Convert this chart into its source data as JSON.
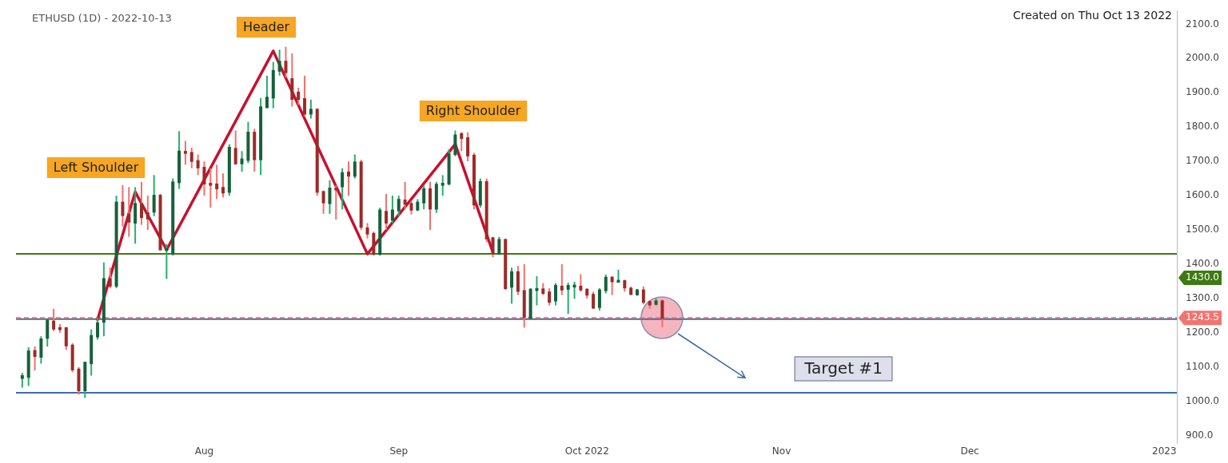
{
  "chart_data": {
    "type": "candlestick",
    "title": "ETHUSD (1D) - 2022-10-13",
    "x": [
      "2022-07-03",
      "2022-07-04",
      "2022-07-05",
      "2022-07-06",
      "2022-07-07",
      "2022-07-08",
      "2022-07-09",
      "2022-07-10",
      "2022-07-11",
      "2022-07-12",
      "2022-07-13",
      "2022-07-14",
      "2022-07-15",
      "2022-07-16",
      "2022-07-17",
      "2022-07-18",
      "2022-07-19",
      "2022-07-20",
      "2022-07-21",
      "2022-07-22",
      "2022-07-23",
      "2022-07-24",
      "2022-07-25",
      "2022-07-26",
      "2022-07-27",
      "2022-07-28",
      "2022-07-29",
      "2022-07-30",
      "2022-07-31",
      "2022-08-01",
      "2022-08-02",
      "2022-08-03",
      "2022-08-04",
      "2022-08-05",
      "2022-08-06",
      "2022-08-07",
      "2022-08-08",
      "2022-08-09",
      "2022-08-10",
      "2022-08-11",
      "2022-08-12",
      "2022-08-13",
      "2022-08-14",
      "2022-08-15",
      "2022-08-16",
      "2022-08-17",
      "2022-08-18",
      "2022-08-19",
      "2022-08-20",
      "2022-08-21",
      "2022-08-22",
      "2022-08-23",
      "2022-08-24",
      "2022-08-25",
      "2022-08-26",
      "2022-08-27",
      "2022-08-28",
      "2022-08-29",
      "2022-08-30",
      "2022-08-31",
      "2022-09-01",
      "2022-09-02",
      "2022-09-03",
      "2022-09-04",
      "2022-09-05",
      "2022-09-06",
      "2022-09-07",
      "2022-09-08",
      "2022-09-09",
      "2022-09-10",
      "2022-09-11",
      "2022-09-12",
      "2022-09-13",
      "2022-09-14",
      "2022-09-15",
      "2022-09-16",
      "2022-09-17",
      "2022-09-18",
      "2022-09-19",
      "2022-09-20",
      "2022-09-21",
      "2022-09-22",
      "2022-09-23",
      "2022-09-24",
      "2022-09-25",
      "2022-09-26",
      "2022-09-27",
      "2022-09-28",
      "2022-09-29",
      "2022-09-30",
      "2022-10-01",
      "2022-10-02",
      "2022-10-03",
      "2022-10-04",
      "2022-10-05",
      "2022-10-06",
      "2022-10-07",
      "2022-10-08",
      "2022-10-09",
      "2022-10-10",
      "2022-10-11",
      "2022-10-12",
      "2022-10-13"
    ],
    "ohlc": [
      [
        1068,
        1083,
        1040,
        1074
      ],
      [
        1071,
        1158,
        1045,
        1146
      ],
      [
        1147,
        1160,
        1090,
        1132
      ],
      [
        1130,
        1190,
        1110,
        1181
      ],
      [
        1185,
        1240,
        1160,
        1236
      ],
      [
        1233,
        1270,
        1205,
        1212
      ],
      [
        1214,
        1225,
        1200,
        1213
      ],
      [
        1214,
        1216,
        1150,
        1163
      ],
      [
        1163,
        1170,
        1085,
        1093
      ],
      [
        1093,
        1100,
        1020,
        1032
      ],
      [
        1032,
        1115,
        1010,
        1113
      ],
      [
        1111,
        1210,
        1075,
        1191
      ],
      [
        1189,
        1245,
        1180,
        1228
      ],
      [
        1232,
        1405,
        1190,
        1357
      ],
      [
        1357,
        1390,
        1330,
        1337
      ],
      [
        1337,
        1600,
        1330,
        1580
      ],
      [
        1580,
        1631,
        1510,
        1543
      ],
      [
        1545,
        1625,
        1480,
        1524
      ],
      [
        1521,
        1625,
        1460,
        1576
      ],
      [
        1576,
        1640,
        1515,
        1537
      ],
      [
        1549,
        1600,
        1500,
        1533
      ],
      [
        1553,
        1660,
        1540,
        1600
      ],
      [
        1600,
        1605,
        1440,
        1443
      ],
      [
        1443,
        1459,
        1357,
        1445
      ],
      [
        1431,
        1650,
        1425,
        1639
      ],
      [
        1639,
        1788,
        1620,
        1729
      ],
      [
        1728,
        1760,
        1690,
        1726
      ],
      [
        1725,
        1740,
        1680,
        1701
      ],
      [
        1701,
        1720,
        1660,
        1682
      ],
      [
        1682,
        1700,
        1600,
        1635
      ],
      [
        1635,
        1680,
        1565,
        1633
      ],
      [
        1633,
        1690,
        1590,
        1621
      ],
      [
        1623,
        1665,
        1595,
        1609
      ],
      [
        1611,
        1750,
        1600,
        1740
      ],
      [
        1737,
        1790,
        1690,
        1694
      ],
      [
        1694,
        1730,
        1670,
        1706
      ],
      [
        1704,
        1815,
        1695,
        1784
      ],
      [
        1784,
        1795,
        1670,
        1706
      ],
      [
        1706,
        1885,
        1660,
        1858
      ],
      [
        1858,
        1950,
        1855,
        1886
      ],
      [
        1886,
        1990,
        1855,
        1964
      ],
      [
        1964,
        2026,
        1950,
        1991
      ],
      [
        1991,
        2034,
        1945,
        1960
      ],
      [
        1940,
        2015,
        1860,
        1882
      ],
      [
        1901,
        1915,
        1865,
        1882
      ],
      [
        1882,
        1950,
        1830,
        1839
      ],
      [
        1839,
        1880,
        1825,
        1851
      ],
      [
        1851,
        1855,
        1600,
        1611
      ],
      [
        1611,
        1615,
        1547,
        1580
      ],
      [
        1578,
        1645,
        1547,
        1621
      ],
      [
        1621,
        1630,
        1530,
        1618
      ],
      [
        1627,
        1680,
        1560,
        1666
      ],
      [
        1668,
        1700,
        1600,
        1658
      ],
      [
        1658,
        1720,
        1650,
        1697
      ],
      [
        1697,
        1705,
        1500,
        1509
      ],
      [
        1505,
        1520,
        1475,
        1489
      ],
      [
        1489,
        1495,
        1425,
        1430
      ],
      [
        1430,
        1565,
        1425,
        1557
      ],
      [
        1553,
        1605,
        1500,
        1521
      ],
      [
        1529,
        1600,
        1520,
        1557
      ],
      [
        1557,
        1600,
        1540,
        1588
      ],
      [
        1586,
        1640,
        1560,
        1576
      ],
      [
        1576,
        1585,
        1545,
        1559
      ],
      [
        1559,
        1590,
        1555,
        1580
      ],
      [
        1580,
        1630,
        1560,
        1619
      ],
      [
        1619,
        1640,
        1500,
        1562
      ],
      [
        1562,
        1640,
        1550,
        1632
      ],
      [
        1632,
        1660,
        1600,
        1635
      ],
      [
        1635,
        1735,
        1630,
        1721
      ],
      [
        1721,
        1790,
        1715,
        1776
      ],
      [
        1780,
        1785,
        1730,
        1768
      ],
      [
        1768,
        1785,
        1700,
        1717
      ],
      [
        1717,
        1725,
        1560,
        1574
      ],
      [
        1574,
        1650,
        1565,
        1640
      ],
      [
        1640,
        1650,
        1465,
        1475
      ],
      [
        1476,
        1480,
        1420,
        1431
      ],
      [
        1431,
        1480,
        1430,
        1471
      ],
      [
        1471,
        1475,
        1325,
        1330
      ],
      [
        1334,
        1390,
        1285,
        1377
      ],
      [
        1377,
        1395,
        1310,
        1322
      ],
      [
        1322,
        1400,
        1215,
        1246
      ],
      [
        1243,
        1330,
        1240,
        1326
      ],
      [
        1326,
        1365,
        1280,
        1328
      ],
      [
        1327,
        1345,
        1310,
        1316
      ],
      [
        1318,
        1330,
        1280,
        1290
      ],
      [
        1294,
        1345,
        1280,
        1337
      ],
      [
        1335,
        1400,
        1310,
        1326
      ],
      [
        1328,
        1346,
        1255,
        1337
      ],
      [
        1337,
        1349,
        1299,
        1338
      ],
      [
        1335,
        1371,
        1320,
        1326
      ],
      [
        1326,
        1330,
        1300,
        1311
      ],
      [
        1311,
        1320,
        1270,
        1273
      ],
      [
        1275,
        1330,
        1265,
        1324
      ],
      [
        1324,
        1370,
        1315,
        1361
      ],
      [
        1361,
        1365,
        1310,
        1350
      ],
      [
        1351,
        1384,
        1348,
        1352
      ],
      [
        1351,
        1355,
        1320,
        1332
      ],
      [
        1329,
        1335,
        1310,
        1313
      ],
      [
        1312,
        1328,
        1308,
        1324
      ],
      [
        1324,
        1335,
        1283,
        1290
      ],
      [
        1290,
        1295,
        1270,
        1282
      ],
      [
        1284,
        1300,
        1280,
        1292
      ],
      [
        1292,
        1297,
        1216,
        1243.5
      ]
    ],
    "series": [
      {
        "type": "line",
        "color": "#c8102e",
        "x": [
          "2022-07-15",
          "2022-07-21",
          "2022-07-26",
          "2022-08-12",
          "2022-08-27",
          "2022-09-10",
          "2022-09-16"
        ],
        "values": [
          1238,
          1611,
          1442,
          2022,
          1430,
          1750,
          1435
        ]
      }
    ],
    "xlim": [
      "2022-07-02",
      "2023-01-03"
    ],
    "xticks": [
      {
        "value": "2022-08-01",
        "label": "Aug"
      },
      {
        "value": "2022-09-01",
        "label": "Sep"
      },
      {
        "value": "2022-10-01",
        "label": "Oct 2022"
      },
      {
        "value": "2022-11-01",
        "label": "Nov"
      },
      {
        "value": "2022-12-01",
        "label": "Dec"
      },
      {
        "value": "2023-01-01",
        "label": "2023"
      }
    ],
    "ylim": [
      877,
      2140
    ],
    "yticks": [
      {
        "value": 900,
        "label": "900.0"
      },
      {
        "value": 1000,
        "label": "1000.0"
      },
      {
        "value": 1100,
        "label": "1100.0"
      },
      {
        "value": 1200,
        "label": "1200.0"
      },
      {
        "value": 1300,
        "label": "1300.0"
      },
      {
        "value": 1400,
        "label": "1400.0"
      },
      {
        "value": 1500,
        "label": "1500.0"
      },
      {
        "value": 1600,
        "label": "1600.0"
      },
      {
        "value": 1700,
        "label": "1700.0"
      },
      {
        "value": 1800,
        "label": "1800.0"
      },
      {
        "value": 1900,
        "label": "1900.0"
      },
      {
        "value": 2000,
        "label": "2000.0"
      },
      {
        "value": 2100,
        "label": "2100.0"
      }
    ],
    "ref_lines": [
      {
        "axis": "y",
        "value": 1430,
        "label": "1430.0",
        "color": "#3d7a12"
      },
      {
        "axis": "y",
        "value": 1240,
        "color": "#3a6ea5"
      },
      {
        "axis": "y",
        "value": 1243.5,
        "label": "1243.5",
        "color": "#f07470",
        "line_style": "dashed"
      },
      {
        "axis": "y",
        "value": 1025,
        "color": "#3a6ea5"
      }
    ],
    "annotations": [
      "Left Shoulder",
      "Header",
      "Right Shoulder",
      "Target #1",
      "Created on Thu Oct 13 2022"
    ],
    "grid": false,
    "legend": false,
    "marker": "none"
  }
}
